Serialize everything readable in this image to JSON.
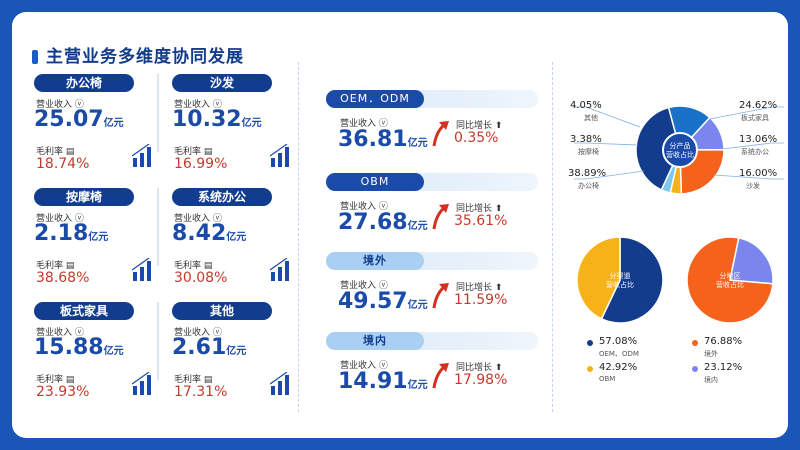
{
  "title": "主营业务多维度协同发展",
  "labels": {
    "revenue": "营业收入",
    "margin": "毛利率",
    "growth": "同比增长",
    "unit": "亿元"
  },
  "segments": [
    {
      "name": "办公椅",
      "revenue": "25.07",
      "margin": "18.74%"
    },
    {
      "name": "沙发",
      "revenue": "10.32",
      "margin": "16.99%"
    },
    {
      "name": "按摩椅",
      "revenue": "2.18",
      "margin": "38.68%"
    },
    {
      "name": "系统办公",
      "revenue": "8.42",
      "margin": "30.08%"
    },
    {
      "name": "板式家具",
      "revenue": "15.88",
      "margin": "23.93%"
    },
    {
      "name": "其他",
      "revenue": "2.61",
      "margin": "17.31%"
    }
  ],
  "models": [
    {
      "name": "OEM．ODM",
      "revenue": "36.81",
      "growth": "0.35%"
    },
    {
      "name": "OBM",
      "revenue": "27.68",
      "growth": "35.61%"
    },
    {
      "name": "境外",
      "revenue": "49.57",
      "growth": "11.59%"
    },
    {
      "name": "境内",
      "revenue": "14.91",
      "growth": "17.98%"
    }
  ],
  "chart_data": [
    {
      "type": "pie",
      "title": "分产品营收占比",
      "categories": [
        "办公椅",
        "沙发",
        "系统办公",
        "板式家具",
        "其他",
        "按摩椅"
      ],
      "values": [
        38.89,
        16.0,
        13.06,
        24.62,
        4.05,
        3.38
      ],
      "labels": [
        "38.89%",
        "16.00%",
        "13.06%",
        "24.62%",
        "4.05%",
        "3.38%"
      ],
      "colors": [
        "#143c8c",
        "#1a72c8",
        "#7a86ee",
        "#f4621c",
        "#f7b21a",
        "#7ec8ee"
      ]
    },
    {
      "type": "pie",
      "title": "分渠道营收占比",
      "categories": [
        "OEM、ODM",
        "OBM"
      ],
      "values": [
        57.08,
        42.92
      ],
      "labels": [
        "57.08%",
        "42.92%"
      ],
      "colors": [
        "#143c8c",
        "#f7b21a"
      ]
    },
    {
      "type": "pie",
      "title": "分地区营收占比",
      "categories": [
        "境外",
        "境内"
      ],
      "values": [
        76.88,
        23.12
      ],
      "labels": [
        "76.88%",
        "23.12%"
      ],
      "colors": [
        "#f4621c",
        "#7a86ee"
      ]
    }
  ]
}
